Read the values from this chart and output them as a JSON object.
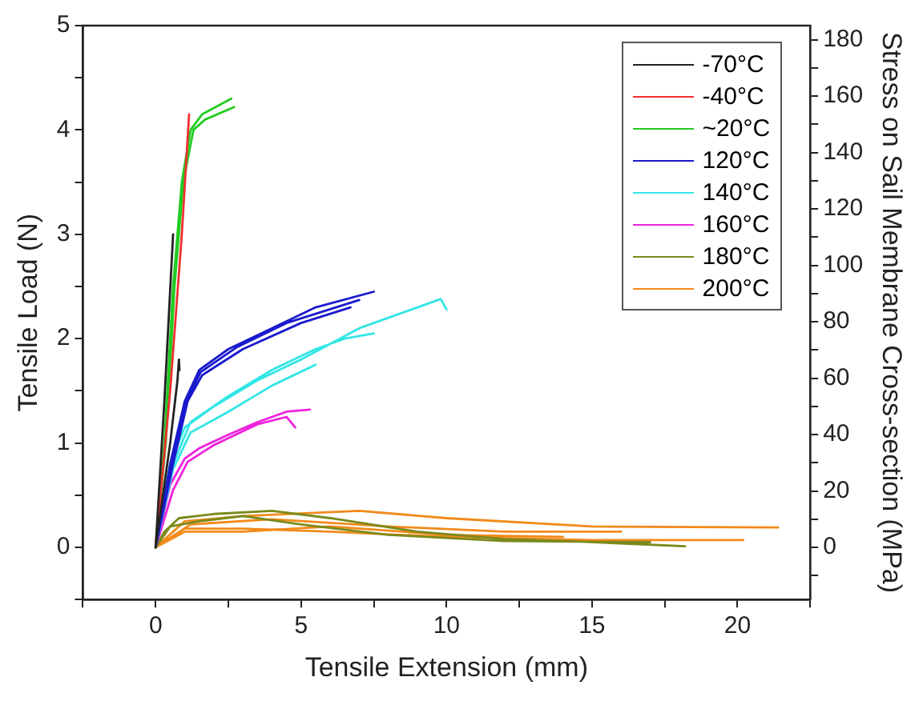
{
  "chart_data": {
    "type": "line",
    "xlabel": "Tensile Extension (mm)",
    "ylabel": "Tensile Load (N)",
    "y2label": "Stress on Sail Membrane Cross-section (MPa)",
    "xlim": [
      -2.5,
      22.5
    ],
    "xticks": [
      {
        "value": -2.5,
        "label": null
      },
      0,
      {
        "value": 2.5,
        "label": null
      },
      5,
      {
        "value": 7.5,
        "label": null
      },
      10,
      {
        "value": 12.5,
        "label": null
      },
      15,
      {
        "value": 17.5,
        "label": null
      },
      20,
      {
        "value": 22.5,
        "label": null
      }
    ],
    "ylim": [
      -0.5,
      5
    ],
    "yticks": [
      {
        "value": -0.5,
        "label": null
      },
      0,
      {
        "value": 0.5,
        "label": null
      },
      1,
      {
        "value": 1.5,
        "label": null
      },
      2,
      {
        "value": 2.5,
        "label": null
      },
      3,
      {
        "value": 3.5,
        "label": null
      },
      4,
      {
        "value": 4.5,
        "label": null
      },
      5
    ],
    "y2lim": [
      -18.5,
      185
    ],
    "y2ticks": [
      {
        "value": -10,
        "label": null
      },
      0,
      {
        "value": 10,
        "label": null
      },
      20,
      {
        "value": 30,
        "label": null
      },
      40,
      {
        "value": 50,
        "label": null
      },
      60,
      {
        "value": 70,
        "label": null
      },
      80,
      {
        "value": 90,
        "label": null
      },
      100,
      {
        "value": 110,
        "label": null
      },
      120,
      {
        "value": 130,
        "label": null
      },
      140,
      {
        "value": 150,
        "label": null
      },
      160,
      {
        "value": 170,
        "label": null
      },
      180
    ],
    "grid": false,
    "legend": "top right",
    "marker": "none",
    "line_style": "solid",
    "series": [
      {
        "name": "-70°C",
        "color": "#222222",
        "x": [
          0,
          0.5,
          0.75,
          0.8,
          0.82,
          null,
          0,
          0.3,
          0.6
        ],
        "values": [
          0,
          1.0,
          1.6,
          1.8,
          1.7,
          null,
          0,
          1.4,
          3.0
        ]
      },
      {
        "name": "-40°C",
        "color": "#ee3030",
        "x": [
          0,
          0.5,
          0.9,
          1.15
        ],
        "values": [
          0,
          1.5,
          3.0,
          4.15
        ]
      },
      {
        "name": "~20°C",
        "color": "#22cc22",
        "x": [
          0,
          0.3,
          0.6,
          0.9,
          1.2,
          1.6,
          2.6,
          null,
          0,
          0.35,
          0.65,
          0.95,
          1.3,
          1.7,
          2.7
        ],
        "values": [
          0,
          1.0,
          2.5,
          3.5,
          4.0,
          4.15,
          4.3,
          null,
          0,
          1.0,
          2.5,
          3.5,
          4.0,
          4.1,
          4.22
        ]
      },
      {
        "name": "120°C",
        "color": "#1a1acc",
        "x": [
          0,
          0.5,
          1,
          1.5,
          2.5,
          4,
          5.5,
          7.5,
          null,
          0,
          0.6,
          1.1,
          1.6,
          3,
          5,
          6.7,
          null,
          0,
          0.55,
          1.05,
          1.55,
          2.8,
          4.5,
          7
        ],
        "values": [
          0,
          0.8,
          1.4,
          1.7,
          1.9,
          2.1,
          2.3,
          2.45,
          null,
          0,
          0.8,
          1.4,
          1.65,
          1.9,
          2.15,
          2.3,
          null,
          0,
          0.8,
          1.4,
          1.68,
          1.92,
          2.15,
          2.37
        ]
      },
      {
        "name": "140°C",
        "color": "#33e6e6",
        "x": [
          0,
          0.5,
          1,
          2,
          3.5,
          5,
          6,
          7,
          8,
          9,
          9.8,
          10,
          null,
          0,
          0.6,
          1.2,
          2.5,
          4,
          5.5,
          6.5,
          7.5,
          null,
          0,
          0.6,
          1.2,
          2.5,
          4,
          5.5
        ],
        "values": [
          0,
          0.8,
          1.15,
          1.35,
          1.6,
          1.8,
          1.95,
          2.1,
          2.2,
          2.3,
          2.38,
          2.28,
          null,
          0,
          0.8,
          1.2,
          1.45,
          1.7,
          1.9,
          2.0,
          2.05,
          null,
          0,
          0.75,
          1.1,
          1.3,
          1.55,
          1.75
        ]
      },
      {
        "name": "160°C",
        "color": "#ee22dd",
        "x": [
          0,
          0.5,
          1,
          1.5,
          2.5,
          3.5,
          4.5,
          5.3,
          null,
          0,
          0.6,
          1.1,
          2,
          3.5,
          4.5,
          4.8
        ],
        "values": [
          0,
          0.6,
          0.85,
          0.95,
          1.08,
          1.2,
          1.3,
          1.32,
          null,
          0,
          0.55,
          0.82,
          0.98,
          1.18,
          1.25,
          1.15
        ]
      },
      {
        "name": "180°C",
        "color": "#7a8a1a",
        "x": [
          0,
          0.3,
          0.8,
          2,
          4,
          6,
          9,
          12,
          15,
          18.2,
          null,
          0,
          0.5,
          1.5,
          3,
          5,
          8,
          12,
          17
        ],
        "values": [
          0,
          0.15,
          0.28,
          0.32,
          0.35,
          0.28,
          0.15,
          0.08,
          0.05,
          0.01,
          null,
          0,
          0.2,
          0.25,
          0.3,
          0.22,
          0.12,
          0.06,
          0.05
        ]
      },
      {
        "name": "200°C",
        "color": "#f28a1a",
        "x": [
          0,
          1,
          3,
          6,
          10,
          15,
          20.2,
          null,
          0,
          1,
          3,
          7,
          10,
          15,
          21.4,
          null,
          0,
          1.2,
          4,
          8,
          12,
          16,
          null,
          0,
          1,
          3,
          6,
          10,
          14
        ],
        "values": [
          0,
          0.18,
          0.18,
          0.15,
          0.1,
          0.07,
          0.07,
          null,
          0,
          0.25,
          0.3,
          0.35,
          0.28,
          0.2,
          0.19,
          null,
          0,
          0.22,
          0.27,
          0.2,
          0.15,
          0.15,
          null,
          0,
          0.15,
          0.15,
          0.2,
          0.12,
          0.1
        ]
      }
    ]
  }
}
